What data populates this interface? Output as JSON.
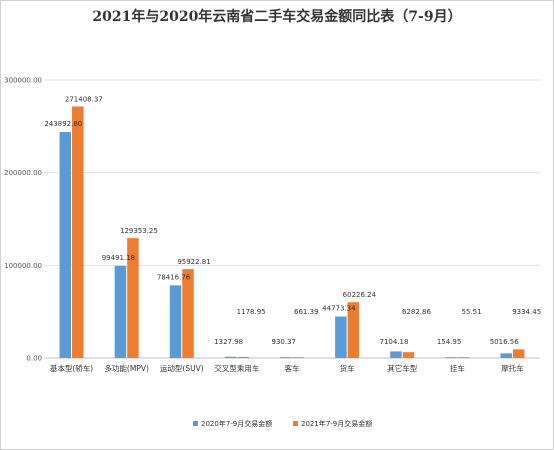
{
  "chart_data": {
    "type": "bar",
    "title": "2021年与2020年云南省二手车交易金额同比表（7-9月）",
    "xlabel": "",
    "ylabel": "",
    "ylim": [
      0,
      300000
    ],
    "yticks": [
      "0.00",
      "100000.00",
      "200000.00",
      "300000.00"
    ],
    "grid": true,
    "legend_position": "bottom",
    "categories": [
      "基本型(轿车)",
      "多功能(MPV)",
      "运动型(SUV)",
      "交叉型乘用车",
      "客车",
      "货车",
      "其它车型",
      "挂车",
      "摩托车"
    ],
    "series": [
      {
        "name": "2020年7-9月交易金额",
        "color": "#5B9BD5",
        "values": [
          243892.8,
          99491.18,
          78416.76,
          1327.98,
          930.37,
          44773.34,
          7104.18,
          154.95,
          5016.56
        ],
        "labels": [
          "243892.80",
          "99491.18",
          "78416.76",
          "1327.98",
          "930.37",
          "44773.34",
          "7104.18",
          "154.95",
          "5016.56"
        ]
      },
      {
        "name": "2021年7-9月交易金额",
        "color": "#ED7D31",
        "values": [
          271408.37,
          129353.25,
          95922.81,
          1178.95,
          661.39,
          60226.24,
          6282.86,
          55.51,
          9334.45
        ],
        "labels": [
          "271408.37",
          "129353.25",
          "95922.81",
          "1178.95",
          "661.39",
          "60226.24",
          "6282.86",
          "55.51",
          "9334.45"
        ]
      }
    ]
  }
}
